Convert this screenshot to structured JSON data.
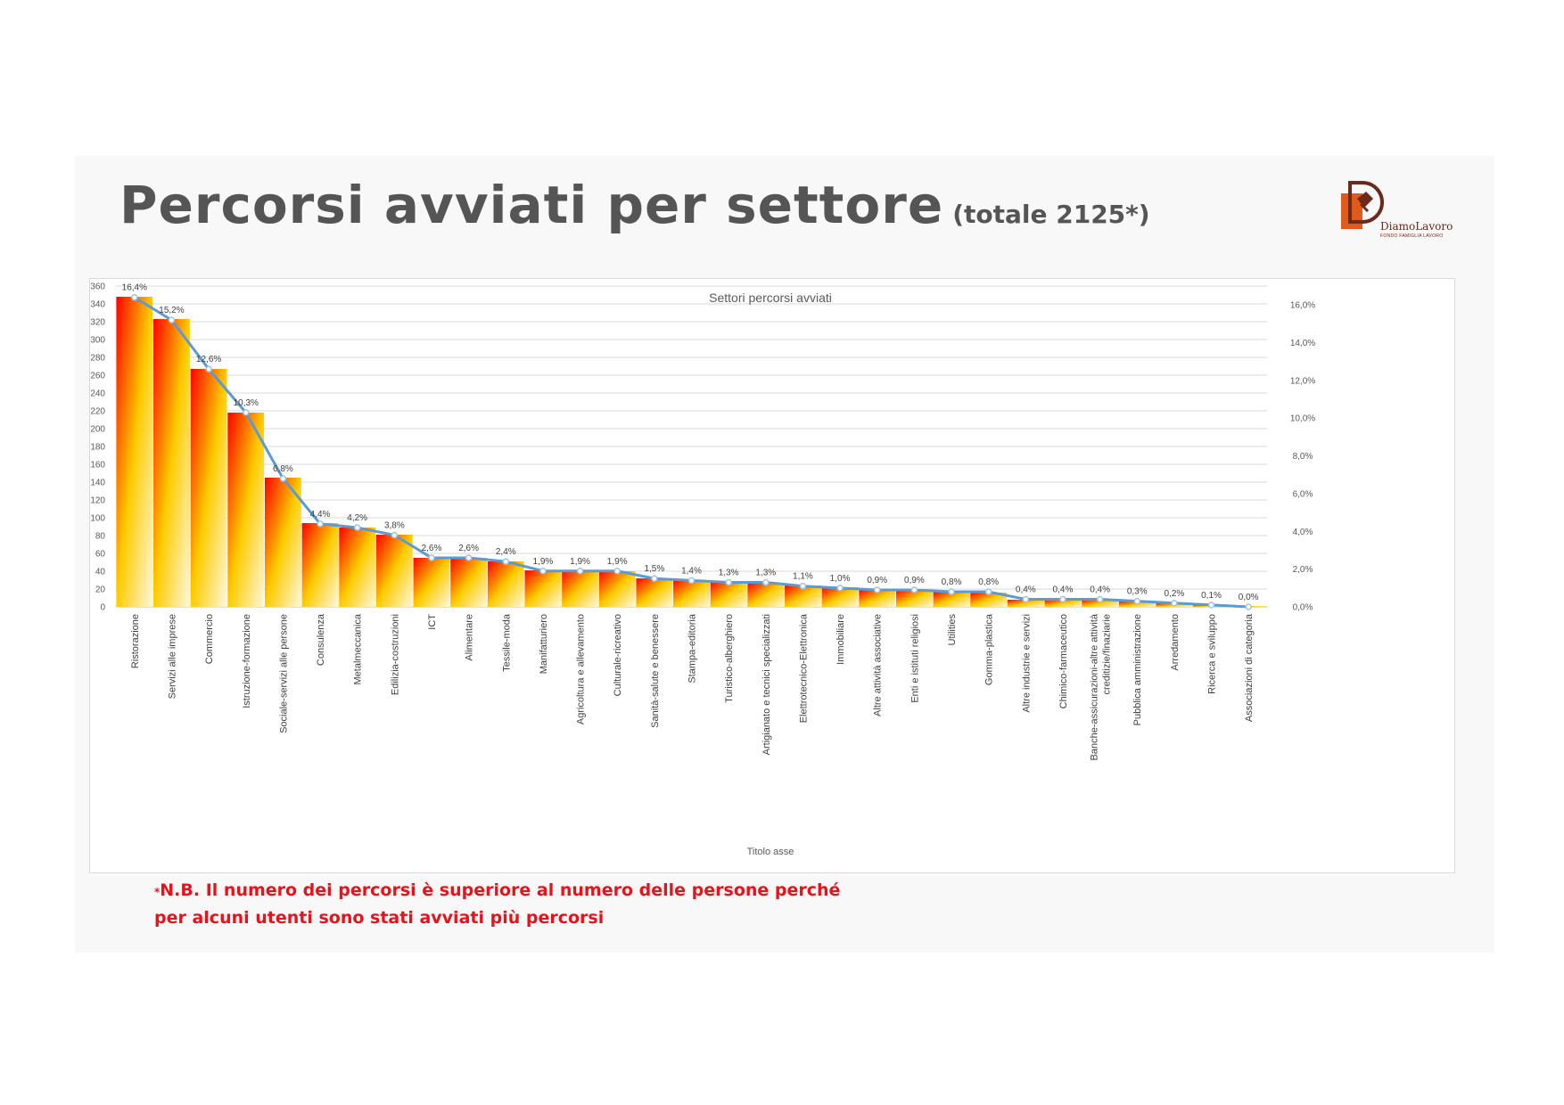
{
  "page": {
    "title": "Percorsi avviati per settore",
    "subtitle": "(totale 2125*)",
    "logo": {
      "name": "DiamoLavoro",
      "tagline": "FONDO FAMIGLIA LAVORO"
    },
    "note_marker": "*",
    "note_line1": "N.B. Il numero dei percorsi è superiore al numero delle persone  perché",
    "note_line2": "per alcuni utenti sono stati avviati più percorsi"
  },
  "colors": {
    "title": "#555555",
    "bar_gradient": [
      "#ff0000",
      "#ffcc00",
      "#fff8e0"
    ],
    "line": "#5b9bd5",
    "note": "#e8121a",
    "logo_orange": "#e05a1c",
    "logo_brown": "#6b2a1a"
  },
  "chart_data": {
    "type": "bar",
    "title": "Settori percorsi avviati",
    "xlabel": "Titolo asse",
    "ylabel": "",
    "ylim": [
      0,
      360
    ],
    "y_ticks": [
      "0",
      "20",
      "40",
      "60",
      "80",
      "100",
      "120",
      "140",
      "160",
      "180",
      "200",
      "220",
      "240",
      "260",
      "280",
      "300",
      "320",
      "340",
      "360"
    ],
    "y2lim": [
      0,
      0.17
    ],
    "y2_ticks": [
      "0,0%",
      "2,0%",
      "4,0%",
      "6,0%",
      "8,0%",
      "10,0%",
      "12,0%",
      "14,0%",
      "16,0%"
    ],
    "grid": true,
    "categories": [
      "Ristorazione",
      "Servizi alle imprese",
      "Commercio",
      "Istruzione-formazione",
      "Sociale-servizi alle persone",
      "Consulenza",
      "Metalmeccanica",
      "Edilizia-costruzioni",
      "ICT",
      "Alimentare",
      "Tessile-moda",
      "Manifatturiero",
      "Agricoltura e allevamento",
      "Culturale-ricreativo",
      "Sanità-salute e benessere",
      "Stampa-editoria",
      "Turistico-alberghiero",
      "Artigianato e tecnici specializzati",
      "Elettrotecnico-Elettronica",
      "Immobiliare",
      "Altre attività associative",
      "Enti e istituti religiosi",
      "Utilities",
      "Gomma-plastica",
      "Altre industrie e servizi",
      "Chimico-farmaceutico",
      "Banche-assicurazioni-altre attività creditizie/finaziarie",
      "Pubblica amministrazione",
      "Arredamento",
      "Ricerca e sviluppo",
      "Associazioni di categoria"
    ],
    "series": [
      {
        "kind": "bar",
        "axis": "left",
        "values": [
          348,
          323,
          267,
          218,
          145,
          94,
          89,
          81,
          55,
          55,
          51,
          41,
          41,
          40,
          32,
          30,
          28,
          27,
          24,
          22,
          19,
          19,
          17,
          16,
          8,
          8,
          8,
          6,
          4,
          2,
          1
        ]
      },
      {
        "kind": "line",
        "axis": "right",
        "values": [
          0.164,
          0.152,
          0.126,
          0.103,
          0.068,
          0.044,
          0.042,
          0.038,
          0.026,
          0.026,
          0.024,
          0.019,
          0.019,
          0.019,
          0.015,
          0.014,
          0.013,
          0.013,
          0.011,
          0.01,
          0.009,
          0.009,
          0.008,
          0.008,
          0.004,
          0.004,
          0.004,
          0.003,
          0.002,
          0.001,
          0.0
        ],
        "labels": [
          "16,4%",
          "15,2%",
          "12,6%",
          "10,3%",
          "6,8%",
          "4,4%",
          "4,2%",
          "3,8%",
          "2,6%",
          "2,6%",
          "2,4%",
          "1,9%",
          "1,9%",
          "1,9%",
          "1,5%",
          "1,4%",
          "1,3%",
          "1,3%",
          "1,1%",
          "1,0%",
          "0,9%",
          "0,9%",
          "0,8%",
          "0,8%",
          "0,4%",
          "0,4%",
          "0,4%",
          "0,3%",
          "0,2%",
          "0,1%",
          "0,0%"
        ]
      }
    ]
  }
}
